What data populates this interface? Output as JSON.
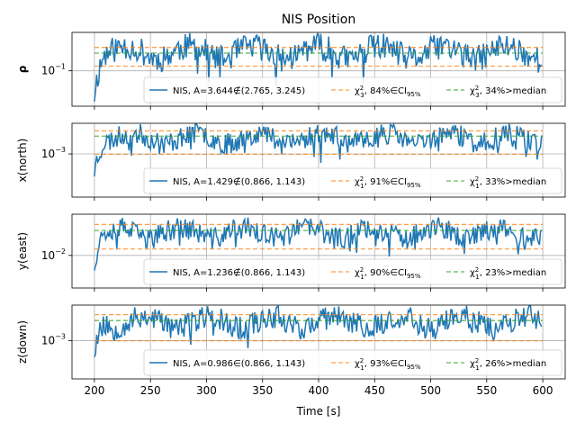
{
  "title": "NIS Position",
  "xlabel": "Time [s]",
  "x_ticks": [
    200,
    250,
    300,
    350,
    400,
    450,
    500,
    550,
    600
  ],
  "colors": {
    "nis": "#1f77b4",
    "ci": "#ff7f0e",
    "median": "#2ca02c",
    "grid": "#b0b0b0"
  },
  "chart_data": [
    {
      "type": "line",
      "ylabel": "ρ",
      "ylabel_bold": true,
      "log_y": true,
      "ylim": [
        0.025,
        0.45
      ],
      "y_ticks": [
        {
          "value": 0.1,
          "label": "10^-1",
          "base": "10",
          "exp": "−1"
        }
      ],
      "ci_bounds": [
        0.12,
        0.25
      ],
      "median": 0.2,
      "base": 0.21,
      "seed": 11,
      "legend": [
        {
          "series": "nis",
          "text": "NIS, A=3.644∉(2.765, 3.245)"
        },
        {
          "series": "ci",
          "text": "χ², 84%∈CI",
          "dof": "3",
          "sub": "95%"
        },
        {
          "series": "median",
          "text": "χ², 34%>median",
          "dof": "3"
        }
      ]
    },
    {
      "type": "line",
      "ylabel": "x(north)",
      "log_y": true,
      "ylim": [
        0.00012,
        0.0045
      ],
      "y_ticks": [
        {
          "value": 0.001,
          "label": "10^-3",
          "base": "10",
          "exp": "−3"
        }
      ],
      "ci_bounds": [
        0.00098,
        0.0031
      ],
      "median": 0.0024,
      "base": 0.0022,
      "seed": 23,
      "legend": [
        {
          "series": "nis",
          "text": "NIS, A=1.429∉(0.866, 1.143)"
        },
        {
          "series": "ci",
          "text": "χ², 91%∈CI",
          "dof": "1",
          "sub": "95%"
        },
        {
          "series": "median",
          "text": "χ², 33%>median",
          "dof": "1"
        }
      ]
    },
    {
      "type": "line",
      "ylabel": "y(east)",
      "log_y": true,
      "ylim": [
        0.0021,
        0.072
      ],
      "y_ticks": [
        {
          "value": 0.01,
          "label": "10^-2",
          "base": "10",
          "exp": "−2"
        }
      ],
      "ci_bounds": [
        0.0136,
        0.044
      ],
      "median": 0.033,
      "base": 0.03,
      "seed": 37,
      "legend": [
        {
          "series": "nis",
          "text": "NIS, A=1.236∉(0.866, 1.143)"
        },
        {
          "series": "ci",
          "text": "χ², 90%∈CI",
          "dof": "1",
          "sub": "95%"
        },
        {
          "series": "median",
          "text": "χ², 23%>median",
          "dof": "1"
        }
      ]
    },
    {
      "type": "line",
      "ylabel": "z(down)",
      "log_y": true,
      "ylim": [
        0.00019,
        0.0047
      ],
      "y_ticks": [
        {
          "value": 0.001,
          "label": "10^-3",
          "base": "10",
          "exp": "−3"
        }
      ],
      "ci_bounds": [
        0.001,
        0.0031
      ],
      "median": 0.0024,
      "base": 0.0023,
      "seed": 53,
      "legend": [
        {
          "series": "nis",
          "text": "NIS, A=0.986∈(0.866, 1.143)"
        },
        {
          "series": "ci",
          "text": "χ², 93%∈CI",
          "dof": "1",
          "sub": "95%"
        },
        {
          "series": "median",
          "text": "χ², 26%>median",
          "dof": "1"
        }
      ]
    }
  ]
}
